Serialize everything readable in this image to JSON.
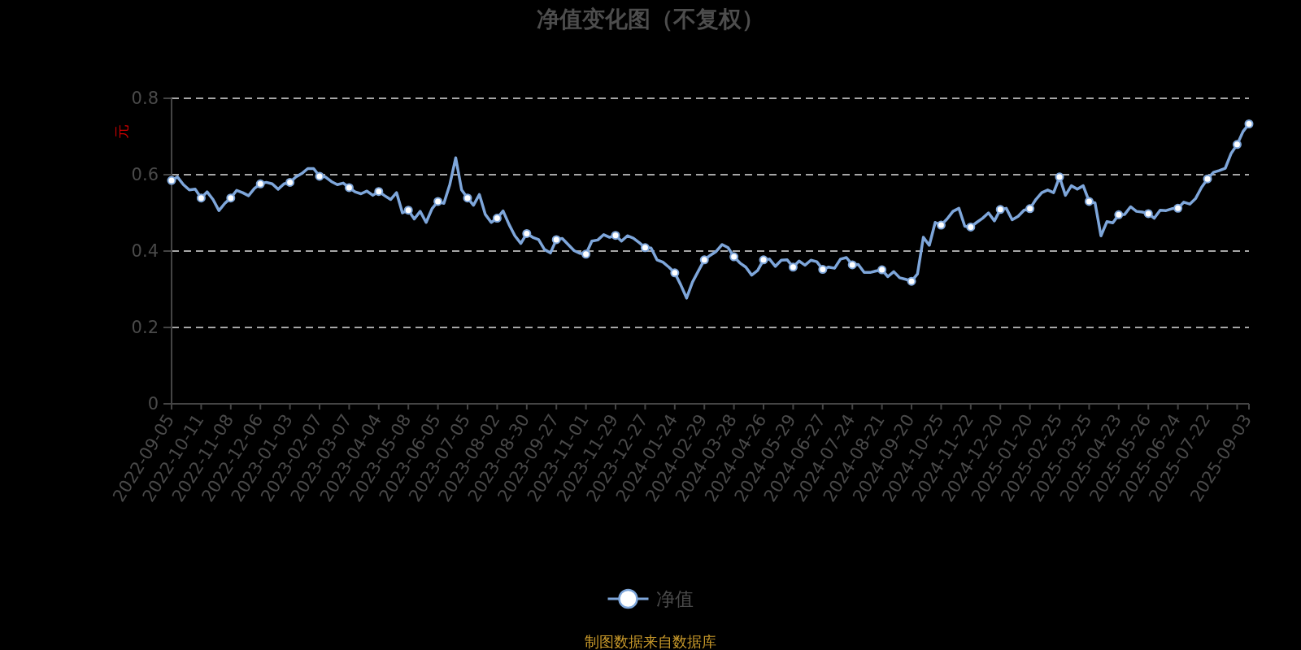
{
  "chart_data": {
    "type": "line",
    "title": "净值变化图（不复权）",
    "ylabel": "元",
    "annotations": [
      "制图数据来自数据库"
    ],
    "categories": [
      "2022-09-05",
      null,
      null,
      null,
      null,
      "2022-10-11",
      null,
      null,
      null,
      null,
      "2022-11-08",
      null,
      null,
      null,
      null,
      "2022-12-06",
      null,
      null,
      null,
      null,
      "2023-01-03",
      null,
      null,
      null,
      null,
      "2023-02-07",
      null,
      null,
      null,
      null,
      "2023-03-07",
      null,
      null,
      null,
      null,
      "2023-04-04",
      null,
      null,
      null,
      null,
      "2023-05-08",
      null,
      null,
      null,
      null,
      "2023-06-05",
      null,
      null,
      null,
      null,
      "2023-07-05",
      null,
      null,
      null,
      null,
      "2023-08-02",
      null,
      null,
      null,
      null,
      "2023-08-30",
      null,
      null,
      null,
      null,
      "2023-09-27",
      null,
      null,
      null,
      null,
      "2023-11-01",
      null,
      null,
      null,
      null,
      "2023-11-29",
      null,
      null,
      null,
      null,
      "2023-12-27",
      null,
      null,
      null,
      null,
      "2024-01-24",
      null,
      null,
      null,
      null,
      "2024-02-29",
      null,
      null,
      null,
      null,
      "2024-03-28",
      null,
      null,
      null,
      null,
      "2024-04-26",
      null,
      null,
      null,
      null,
      "2024-05-29",
      null,
      null,
      null,
      null,
      "2024-06-27",
      null,
      null,
      null,
      null,
      "2024-07-24",
      null,
      null,
      null,
      null,
      "2024-08-21",
      null,
      null,
      null,
      null,
      "2024-09-20",
      null,
      null,
      null,
      null,
      "2024-10-25",
      null,
      null,
      null,
      null,
      "2024-11-22",
      null,
      null,
      null,
      null,
      "2024-12-20",
      null,
      null,
      null,
      null,
      "2025-01-20",
      null,
      null,
      null,
      null,
      "2025-02-25",
      null,
      null,
      null,
      null,
      "2025-03-25",
      null,
      null,
      null,
      null,
      "2025-04-23",
      null,
      null,
      null,
      null,
      "2025-05-26",
      null,
      null,
      null,
      null,
      "2025-06-24",
      null,
      null,
      null,
      null,
      "2025-07-22",
      null,
      null,
      null,
      null,
      null,
      null,
      "2025-09-03"
    ],
    "series": [
      {
        "name": "净值",
        "color": "#7ea6da",
        "values": [
          0.585,
          0.594,
          0.574,
          0.56,
          0.562,
          0.539,
          0.555,
          0.535,
          0.506,
          0.525,
          0.539,
          0.559,
          0.553,
          0.545,
          0.564,
          0.576,
          0.58,
          0.576,
          0.562,
          0.576,
          0.58,
          0.594,
          0.603,
          0.616,
          0.616,
          0.596,
          0.594,
          0.582,
          0.574,
          0.578,
          0.566,
          0.555,
          0.55,
          0.557,
          0.546,
          0.556,
          0.545,
          0.535,
          0.553,
          0.5,
          0.507,
          0.484,
          0.504,
          0.475,
          0.511,
          0.53,
          0.525,
          0.574,
          0.644,
          0.56,
          0.539,
          0.52,
          0.548,
          0.496,
          0.475,
          0.486,
          0.505,
          0.47,
          0.44,
          0.42,
          0.446,
          0.436,
          0.43,
          0.404,
          0.395,
          0.43,
          0.433,
          0.417,
          0.401,
          0.394,
          0.392,
          0.426,
          0.429,
          0.443,
          0.436,
          0.441,
          0.426,
          0.44,
          0.434,
          0.422,
          0.409,
          0.408,
          0.377,
          0.371,
          0.358,
          0.343,
          0.312,
          0.277,
          0.319,
          0.348,
          0.377,
          0.389,
          0.399,
          0.417,
          0.409,
          0.385,
          0.369,
          0.358,
          0.337,
          0.349,
          0.377,
          0.379,
          0.36,
          0.376,
          0.377,
          0.358,
          0.374,
          0.363,
          0.376,
          0.372,
          0.352,
          0.358,
          0.355,
          0.379,
          0.383,
          0.364,
          0.365,
          0.344,
          0.344,
          0.348,
          0.351,
          0.333,
          0.346,
          0.33,
          0.326,
          0.321,
          0.34,
          0.436,
          0.415,
          0.475,
          0.468,
          0.484,
          0.504,
          0.512,
          0.465,
          0.463,
          0.475,
          0.486,
          0.5,
          0.479,
          0.509,
          0.512,
          0.482,
          0.491,
          0.507,
          0.511,
          0.535,
          0.553,
          0.56,
          0.553,
          0.594,
          0.546,
          0.571,
          0.562,
          0.571,
          0.53,
          0.526,
          0.44,
          0.477,
          0.474,
          0.495,
          0.496,
          0.516,
          0.504,
          0.502,
          0.498,
          0.486,
          0.507,
          0.506,
          0.511,
          0.512,
          0.528,
          0.523,
          0.538,
          0.567,
          0.589,
          0.606,
          0.611,
          0.617,
          0.656,
          0.679,
          0.713,
          0.733
        ]
      },
      {
        "type": "scatter",
        "color": "#7ea6da",
        "marker": "circle",
        "values": [
          0.585,
          null,
          null,
          null,
          null,
          0.539,
          null,
          null,
          null,
          null,
          0.539,
          null,
          null,
          null,
          null,
          0.576,
          null,
          null,
          null,
          null,
          0.58,
          null,
          null,
          null,
          null,
          0.596,
          null,
          null,
          null,
          null,
          0.566,
          null,
          null,
          null,
          null,
          0.556,
          null,
          null,
          null,
          null,
          0.507,
          null,
          null,
          null,
          null,
          0.53,
          null,
          null,
          null,
          null,
          0.539,
          null,
          null,
          null,
          null,
          0.486,
          null,
          null,
          null,
          null,
          0.446,
          null,
          null,
          null,
          null,
          0.43,
          null,
          null,
          null,
          null,
          0.392,
          null,
          null,
          null,
          null,
          0.441,
          null,
          null,
          null,
          null,
          0.409,
          null,
          null,
          null,
          null,
          0.343,
          null,
          null,
          null,
          null,
          0.377,
          null,
          null,
          null,
          null,
          0.385,
          null,
          null,
          null,
          null,
          0.377,
          null,
          null,
          null,
          null,
          0.358,
          null,
          null,
          null,
          null,
          0.352,
          null,
          null,
          null,
          null,
          0.364,
          null,
          null,
          null,
          null,
          0.351,
          null,
          null,
          null,
          null,
          0.321,
          null,
          null,
          null,
          null,
          0.468,
          null,
          null,
          null,
          null,
          0.463,
          null,
          null,
          null,
          null,
          0.509,
          null,
          null,
          null,
          null,
          0.511,
          null,
          null,
          null,
          null,
          0.594,
          null,
          null,
          null,
          null,
          0.53,
          null,
          null,
          null,
          null,
          0.495,
          null,
          null,
          null,
          null,
          0.498,
          null,
          null,
          null,
          null,
          0.512,
          null,
          null,
          null,
          null,
          0.589,
          null,
          null,
          null,
          null,
          0.679,
          null,
          0.733
        ]
      }
    ],
    "ylim": [
      0,
      0.8
    ],
    "yticks": [
      0,
      0.2,
      0.4,
      0.6,
      0.8
    ],
    "grid": "y",
    "legend": "bottom"
  }
}
